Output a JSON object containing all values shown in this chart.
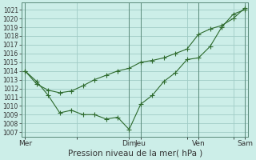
{
  "xlabel": "Pression niveau de la mer( hPa )",
  "yticks": [
    1007,
    1008,
    1009,
    1010,
    1011,
    1012,
    1013,
    1014,
    1015,
    1016,
    1017,
    1018,
    1019,
    1020,
    1021
  ],
  "ylim": [
    1006.5,
    1021.8
  ],
  "xlim": [
    -0.3,
    19.3
  ],
  "background_color": "#cceee8",
  "line_color": "#2d6a2d",
  "grid_color": "#a0ccc6",
  "vline_color": "#5a8a7a",
  "xtick_labels": [
    "Mer",
    "",
    "Dim",
    "Jeu",
    "",
    "Ven",
    "",
    "Sam"
  ],
  "xtick_positions": [
    0,
    4.5,
    9,
    10,
    14,
    15,
    18,
    19
  ],
  "vline_positions": [
    0,
    9,
    10,
    15,
    19
  ],
  "line1_x": [
    0,
    1,
    2,
    3,
    4,
    5,
    6,
    7,
    8,
    9,
    10,
    11,
    12,
    13,
    14,
    15,
    16,
    17,
    18,
    19
  ],
  "line1_y": [
    1014.0,
    1012.5,
    1011.8,
    1011.5,
    1011.7,
    1012.3,
    1013.0,
    1013.5,
    1014.0,
    1014.3,
    1015.0,
    1015.2,
    1015.5,
    1016.0,
    1016.5,
    1018.2,
    1018.8,
    1019.2,
    1020.0,
    1021.2
  ],
  "line2_x": [
    0,
    1,
    2,
    3,
    4,
    5,
    6,
    7,
    8,
    9,
    10,
    11,
    12,
    13,
    14,
    15,
    16,
    17,
    18,
    19
  ],
  "line2_y": [
    1014.0,
    1012.8,
    1011.2,
    1009.2,
    1009.5,
    1009.0,
    1009.0,
    1008.5,
    1008.7,
    1007.3,
    1010.2,
    1011.2,
    1012.8,
    1013.8,
    1015.3,
    1015.5,
    1016.8,
    1019.0,
    1020.5,
    1021.0
  ],
  "marker_size": 2.5,
  "linewidth": 0.8,
  "ytick_fontsize": 5.5,
  "xtick_fontsize": 6.5,
  "xlabel_fontsize": 7.5
}
